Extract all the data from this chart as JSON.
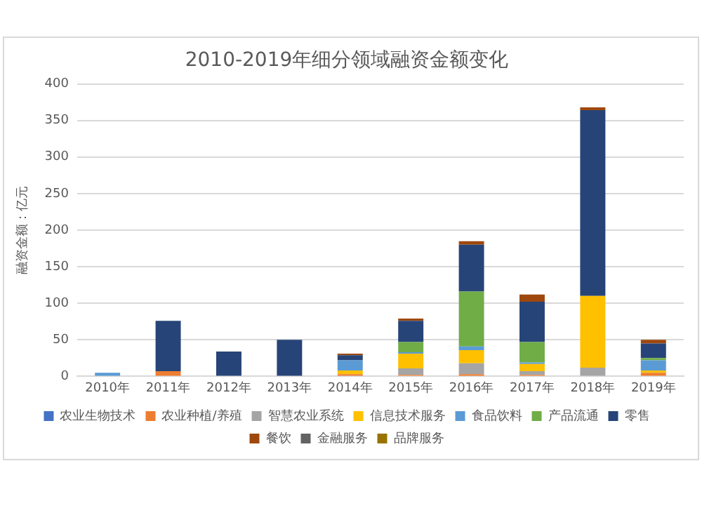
{
  "chart_data": {
    "type": "bar",
    "stacked": true,
    "title": "2010-2019年细分领域融资金额变化",
    "ylabel": "融资金额：亿元",
    "categories": [
      "2010年",
      "2011年",
      "2012年",
      "2013年",
      "2014年",
      "2015年",
      "2016年",
      "2017年",
      "2018年",
      "2019年"
    ],
    "series": [
      {
        "name": "农业生物技术",
        "color": "#4472c4",
        "values": [
          0,
          0,
          0,
          0,
          0,
          0,
          0,
          0,
          0,
          0
        ]
      },
      {
        "name": "农业种植/养殖",
        "color": "#ed7d31",
        "values": [
          0,
          7,
          0,
          0,
          3,
          2,
          3,
          2,
          0,
          5
        ]
      },
      {
        "name": "智慧农业系统",
        "color": "#a5a5a5",
        "values": [
          0,
          0,
          0,
          0,
          0,
          9,
          15,
          5,
          12,
          null
        ]
      },
      {
        "name": "信息技术服务",
        "color": "#ffc000",
        "values": [
          0,
          0,
          0,
          0,
          5,
          20,
          18,
          10,
          98,
          3
        ]
      },
      {
        "name": "食品饮料",
        "color": "#5b9bd5",
        "values": [
          5,
          0,
          0,
          0,
          14,
          2,
          5,
          2,
          0,
          14
        ]
      },
      {
        "name": "产品流通",
        "color": "#70ad47",
        "values": [
          0,
          0,
          0,
          0,
          0,
          14,
          75,
          28,
          0,
          3
        ]
      },
      {
        "name": "零售",
        "color": "#264478",
        "values": [
          0,
          69,
          34,
          50,
          7,
          29,
          64,
          55,
          254,
          20
        ]
      },
      {
        "name": "餐饮",
        "color": "#9e480e",
        "values": [
          0,
          0,
          0,
          0,
          2,
          3,
          5,
          10,
          4,
          5
        ]
      },
      {
        "name": "金融服务",
        "color": "#636363",
        "values": [
          0,
          0,
          0,
          0,
          0,
          0,
          0,
          0,
          0,
          0
        ]
      },
      {
        "name": "品牌服务",
        "color": "#997300",
        "values": [
          0,
          0,
          0,
          0,
          0,
          0,
          0,
          0,
          0,
          0
        ]
      }
    ],
    "ylim": [
      0,
      400
    ],
    "yticks": [
      0,
      50,
      100,
      150,
      200,
      250,
      300,
      350,
      400
    ],
    "grid": "y",
    "legend": "bottom"
  }
}
